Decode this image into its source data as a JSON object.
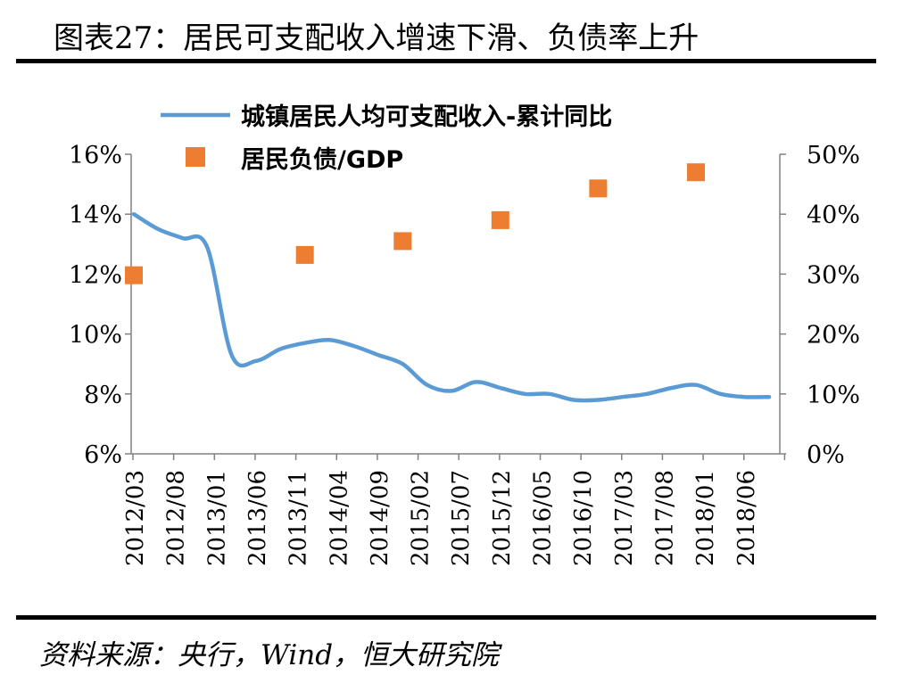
{
  "header": {
    "title": "图表27：居民可支配收入增速下滑、负债率上升"
  },
  "footer": {
    "source": "资料来源：央行，Wind，恒大研究院"
  },
  "chart_data": {
    "type": "line+scatter",
    "categories": [
      "2012/03",
      "2012/08",
      "2013/01",
      "2013/06",
      "2013/11",
      "2014/04",
      "2014/09",
      "2015/02",
      "2015/07",
      "2015/12",
      "2016/05",
      "2016/10",
      "2017/03",
      "2017/08",
      "2018/01",
      "2018/06"
    ],
    "legend": {
      "placement": "top",
      "entries": [
        "城镇居民人均可支配收入-累计同比",
        "居民负债/GDP"
      ]
    },
    "left_axis": {
      "ticks": [
        "16%",
        "14%",
        "12%",
        "10%",
        "8%",
        "6%"
      ],
      "ylim": [
        6,
        16
      ]
    },
    "right_axis": {
      "ticks": [
        "50%",
        "40%",
        "30%",
        "20%",
        "10%",
        "0%"
      ],
      "ylim": [
        0,
        50
      ]
    },
    "series": [
      {
        "name": "城镇居民人均可支配收入-累计同比",
        "kind": "line",
        "axis": "left",
        "color": "#5b9bd5",
        "points": [
          {
            "x": "2012/03",
            "y": 14.0
          },
          {
            "x": "2012/06",
            "y": 13.5
          },
          {
            "x": "2012/09",
            "y": 13.2
          },
          {
            "x": "2012/12",
            "y": 12.9
          },
          {
            "x": "2013/03",
            "y": 9.3
          },
          {
            "x": "2013/06",
            "y": 9.1
          },
          {
            "x": "2013/09",
            "y": 9.5
          },
          {
            "x": "2013/12",
            "y": 9.7
          },
          {
            "x": "2014/03",
            "y": 9.8
          },
          {
            "x": "2014/06",
            "y": 9.6
          },
          {
            "x": "2014/09",
            "y": 9.3
          },
          {
            "x": "2014/12",
            "y": 9.0
          },
          {
            "x": "2015/03",
            "y": 8.3
          },
          {
            "x": "2015/06",
            "y": 8.1
          },
          {
            "x": "2015/09",
            "y": 8.4
          },
          {
            "x": "2015/12",
            "y": 8.2
          },
          {
            "x": "2016/03",
            "y": 8.0
          },
          {
            "x": "2016/06",
            "y": 8.0
          },
          {
            "x": "2016/09",
            "y": 7.8
          },
          {
            "x": "2016/12",
            "y": 7.8
          },
          {
            "x": "2017/03",
            "y": 7.9
          },
          {
            "x": "2017/06",
            "y": 8.0
          },
          {
            "x": "2017/09",
            "y": 8.2
          },
          {
            "x": "2017/12",
            "y": 8.3
          },
          {
            "x": "2018/03",
            "y": 8.0
          },
          {
            "x": "2018/06",
            "y": 7.9
          },
          {
            "x": "2018/09",
            "y": 7.9
          }
        ]
      },
      {
        "name": "居民负债/GDP",
        "kind": "scatter",
        "axis": "right",
        "color": "#ed7d31",
        "points": [
          {
            "x": "2012/03",
            "y": 29.8
          },
          {
            "x": "2013/12",
            "y": 33.2
          },
          {
            "x": "2014/12",
            "y": 35.5
          },
          {
            "x": "2015/12",
            "y": 39.0
          },
          {
            "x": "2016/12",
            "y": 44.3
          },
          {
            "x": "2017/12",
            "y": 47.0
          }
        ]
      }
    ]
  }
}
